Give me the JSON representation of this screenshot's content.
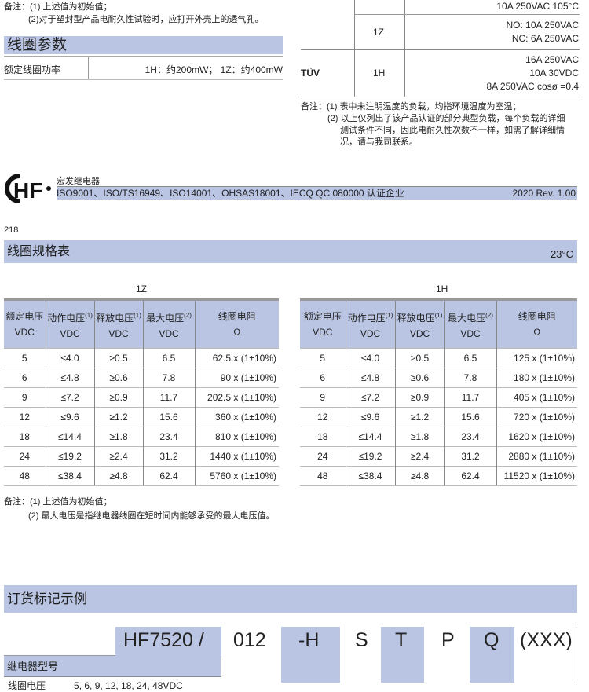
{
  "top_notes": {
    "prefix": "备注：",
    "n1": "(1) 上述值为初始值；",
    "n2": "(2)对于塑封型产品电耐久性试验时，应打开外壳上的透气孔。"
  },
  "coil_params": {
    "title": "线圈参数",
    "row_label": "额定线圈功率",
    "row_value": "1H：约200mW； 1Z：约400mW"
  },
  "cert_table": {
    "row0": "10A 250VAC 105°C",
    "row1_type": "1Z",
    "row1_lines": [
      "NO: 10A  250VAC",
      "NC:  6A  250VAC"
    ],
    "row2_cert": "TÜV",
    "row2_type": "1H",
    "row2_lines": [
      "16A  250VAC",
      "10A  30VDC",
      "8A  250VAC  cosø =0.4"
    ]
  },
  "cert_notes": {
    "prefix": "备注：",
    "n1": "(1) 表中未注明温度的负载，均指环境温度为室温；",
    "n2a": "(2) 以上仅列出了该产品认证的部分典型负载，每个负载的详细",
    "n2b": "测试条件不同，因此电耐久性次数不一样，如需了解详细情",
    "n2c": "况，请与我司联系。"
  },
  "footer": {
    "logo_text": "HF",
    "company": "宏发继电器",
    "certs": "ISO9001、ISO/TS16949、ISO14001、OHSAS18001、IECQ QC 080000 认证企业",
    "revision": "2020  Rev. 1.00",
    "page_number": "218"
  },
  "coil_spec": {
    "title": "线圈规格表",
    "temperature": "23°C",
    "headers": [
      [
        "额定电压",
        "VDC",
        ""
      ],
      [
        "动作电压",
        "VDC",
        "(1)"
      ],
      [
        "释放电压",
        "VDC",
        "(1)"
      ],
      [
        "最大电压",
        "VDC",
        "(2)"
      ],
      [
        "线圈电阻",
        "Ω",
        ""
      ]
    ],
    "tables": [
      {
        "label": "1Z",
        "rows": [
          [
            "5",
            "≤4.0",
            "≥0.5",
            "6.5",
            "62.5 x (1±10%)"
          ],
          [
            "6",
            "≤4.8",
            "≥0.6",
            "7.8",
            "90 x (1±10%)"
          ],
          [
            "9",
            "≤7.2",
            "≥0.9",
            "11.7",
            "202.5 x (1±10%)"
          ],
          [
            "12",
            "≤9.6",
            "≥1.2",
            "15.6",
            "360 x (1±10%)"
          ],
          [
            "18",
            "≤14.4",
            "≥1.8",
            "23.4",
            "810 x (1±10%)"
          ],
          [
            "24",
            "≤19.2",
            "≥2.4",
            "31.2",
            "1440 x (1±10%)"
          ],
          [
            "48",
            "≤38.4",
            "≥4.8",
            "62.4",
            "5760 x (1±10%)"
          ]
        ]
      },
      {
        "label": "1H",
        "rows": [
          [
            "5",
            "≤4.0",
            "≥0.5",
            "6.5",
            "125 x (1±10%)"
          ],
          [
            "6",
            "≤4.8",
            "≥0.6",
            "7.8",
            "180 x (1±10%)"
          ],
          [
            "9",
            "≤7.2",
            "≥0.9",
            "11.7",
            "405 x (1±10%)"
          ],
          [
            "12",
            "≤9.6",
            "≥1.2",
            "15.6",
            "720 x (1±10%)"
          ],
          [
            "18",
            "≤14.4",
            "≥1.8",
            "23.4",
            "1620 x (1±10%)"
          ],
          [
            "24",
            "≤19.2",
            "≥2.4",
            "31.2",
            "2880 x (1±10%)"
          ],
          [
            "48",
            "≤38.4",
            "≥4.8",
            "62.4",
            "11520 x (1±10%)"
          ]
        ]
      }
    ],
    "notes": {
      "prefix": "备注：",
      "n1": "(1) 上述值为初始值；",
      "n2": "(2) 最大电压是指继电器线圈在短时间内能够承受的最大电压值。"
    }
  },
  "ordering": {
    "title": "订货标记示例",
    "codes": [
      "HF7520 /",
      "012",
      "-H",
      "S",
      "T",
      "P",
      "Q",
      "(XXX)"
    ],
    "relay_model_label": "继电器型号",
    "coil_voltage_label": "线圈电压",
    "coil_voltage_value": "5, 6, 9, 12, 18, 24, 48VDC"
  }
}
